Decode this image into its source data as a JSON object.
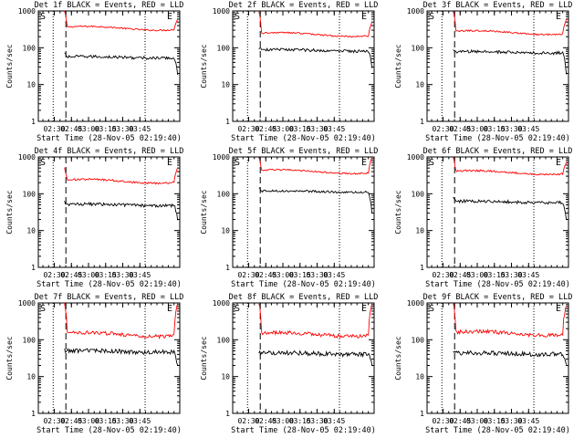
{
  "chart_data": [
    {
      "type": "line",
      "title": "Det 1f BLACK = Events, RED = LLD",
      "xlabel": "Start Time (28-Nov-05 02:19:40)",
      "ylabel": "Counts/sec",
      "yscale": "log",
      "ylim": [
        1,
        1000
      ],
      "yticks": [
        "1",
        "10",
        "100",
        "1000"
      ],
      "xticks": [
        "02:30",
        "02:45",
        "03:00",
        "03:15",
        "03:30",
        "03:45"
      ],
      "markers": {
        "start": "S",
        "end": "E"
      },
      "series": [
        {
          "color": "#ff0000",
          "level": 340,
          "edge_start": 1000,
          "edge_end": 600,
          "noise": 0.02
        },
        {
          "color": "#000000",
          "level": 55,
          "edge_start": 70,
          "edge_end": 20,
          "noise": 0.04
        }
      ]
    },
    {
      "type": "line",
      "title": "Det 2f BLACK = Events, RED = LLD",
      "xlabel": "Start Time (28-Nov-05 02:19:40)",
      "ylabel": "Counts/sec",
      "yscale": "log",
      "ylim": [
        1,
        1000
      ],
      "yticks": [
        "1",
        "10",
        "100",
        "1000"
      ],
      "xticks": [
        "02:30",
        "02:45",
        "03:00",
        "03:15",
        "03:30",
        "03:45"
      ],
      "markers": {
        "start": "S",
        "end": "E"
      },
      "series": [
        {
          "color": "#ff0000",
          "level": 230,
          "edge_start": 1000,
          "edge_end": 500,
          "noise": 0.02
        },
        {
          "color": "#000000",
          "level": 85,
          "edge_start": 100,
          "edge_end": 30,
          "noise": 0.04
        }
      ]
    },
    {
      "type": "line",
      "title": "Det 3f BLACK = Events, RED = LLD",
      "xlabel": "Start Time (28-Nov-05 02:19:40)",
      "ylabel": "Counts/sec",
      "yscale": "log",
      "ylim": [
        1,
        1000
      ],
      "yticks": [
        "1",
        "10",
        "100",
        "1000"
      ],
      "xticks": [
        "02:30",
        "02:45",
        "03:00",
        "03:15",
        "03:30",
        "03:45"
      ],
      "markers": {
        "start": "S",
        "end": "E"
      },
      "series": [
        {
          "color": "#ff0000",
          "level": 260,
          "edge_start": 1000,
          "edge_end": 600,
          "noise": 0.02
        },
        {
          "color": "#000000",
          "level": 75,
          "edge_start": 90,
          "edge_end": 20,
          "noise": 0.04
        }
      ]
    },
    {
      "type": "line",
      "title": "Det 4f BLACK = Events, RED = LLD",
      "xlabel": "Start Time (28-Nov-05 02:19:40)",
      "ylabel": "Counts/sec",
      "yscale": "log",
      "ylim": [
        1,
        1000
      ],
      "yticks": [
        "1",
        "10",
        "100",
        "1000"
      ],
      "xticks": [
        "02:30",
        "02:45",
        "03:00",
        "03:15",
        "03:30",
        "03:45"
      ],
      "markers": {
        "start": "S",
        "end": "E"
      },
      "series": [
        {
          "color": "#ff0000",
          "level": 220,
          "edge_start": 500,
          "edge_end": 500,
          "noise": 0.025
        },
        {
          "color": "#000000",
          "level": 50,
          "edge_start": 60,
          "edge_end": 20,
          "noise": 0.04
        }
      ]
    },
    {
      "type": "line",
      "title": "Det 5f BLACK = Events, RED = LLD",
      "xlabel": "Start Time (28-Nov-05 02:19:40)",
      "ylabel": "Counts/sec",
      "yscale": "log",
      "ylim": [
        1,
        1000
      ],
      "yticks": [
        "1",
        "10",
        "100",
        "1000"
      ],
      "xticks": [
        "02:30",
        "02:45",
        "03:00",
        "03:15",
        "03:30",
        "03:45"
      ],
      "markers": {
        "start": "S",
        "end": "E"
      },
      "series": [
        {
          "color": "#ff0000",
          "level": 400,
          "edge_start": 1000,
          "edge_end": 1000,
          "noise": 0.02
        },
        {
          "color": "#000000",
          "level": 115,
          "edge_start": 150,
          "edge_end": 30,
          "noise": 0.03
        }
      ]
    },
    {
      "type": "line",
      "title": "Det 6f BLACK = Events, RED = LLD",
      "xlabel": "Start Time (28-Nov-05 02:19:40)",
      "ylabel": "Counts/sec",
      "yscale": "log",
      "ylim": [
        1,
        1000
      ],
      "yticks": [
        "1",
        "10",
        "100",
        "1000"
      ],
      "xticks": [
        "02:30",
        "02:45",
        "03:00",
        "03:15",
        "03:30",
        "03:45"
      ],
      "markers": {
        "start": "S",
        "end": "E"
      },
      "series": [
        {
          "color": "#ff0000",
          "level": 380,
          "edge_start": 1000,
          "edge_end": 700,
          "noise": 0.025
        },
        {
          "color": "#000000",
          "level": 60,
          "edge_start": 80,
          "edge_end": 20,
          "noise": 0.04
        }
      ]
    },
    {
      "type": "line",
      "title": "Det 7f BLACK = Events, RED = LLD",
      "xlabel": "Start Time (28-Nov-05 02:19:40)",
      "ylabel": "Counts/sec",
      "yscale": "log",
      "ylim": [
        1,
        1000
      ],
      "yticks": [
        "1",
        "10",
        "100",
        "1000"
      ],
      "xticks": [
        "02:30",
        "02:45",
        "03:00",
        "03:15",
        "03:30",
        "03:45"
      ],
      "markers": {
        "start": "S",
        "end": "E"
      },
      "series": [
        {
          "color": "#ff0000",
          "level": 140,
          "edge_start": 1000,
          "edge_end": 900,
          "noise": 0.05
        },
        {
          "color": "#000000",
          "level": 48,
          "edge_start": 50,
          "edge_end": 20,
          "noise": 0.06
        }
      ]
    },
    {
      "type": "line",
      "title": "Det 8f BLACK = Events, RED = LLD",
      "xlabel": "Start Time (28-Nov-05 02:19:40)",
      "ylabel": "Counts/sec",
      "yscale": "log",
      "ylim": [
        1,
        1000
      ],
      "yticks": [
        "1",
        "10",
        "100",
        "1000"
      ],
      "xticks": [
        "02:30",
        "02:45",
        "03:00",
        "03:15",
        "03:30",
        "03:45"
      ],
      "markers": {
        "start": "S",
        "end": "E"
      },
      "series": [
        {
          "color": "#ff0000",
          "level": 140,
          "edge_start": 1000,
          "edge_end": 900,
          "noise": 0.05
        },
        {
          "color": "#000000",
          "level": 42,
          "edge_start": 45,
          "edge_end": 20,
          "noise": 0.06
        }
      ]
    },
    {
      "type": "line",
      "title": "Det 9f BLACK = Events, RED = LLD",
      "xlabel": "Start Time (28-Nov-05 02:19:40)",
      "ylabel": "Counts/sec",
      "yscale": "log",
      "ylim": [
        1,
        1000
      ],
      "yticks": [
        "1",
        "10",
        "100",
        "1000"
      ],
      "xticks": [
        "02:30",
        "02:45",
        "03:00",
        "03:15",
        "03:30",
        "03:45"
      ],
      "markers": {
        "start": "S",
        "end": "E"
      },
      "series": [
        {
          "color": "#ff0000",
          "level": 150,
          "edge_start": 1000,
          "edge_end": 900,
          "noise": 0.05
        },
        {
          "color": "#000000",
          "level": 42,
          "edge_start": 45,
          "edge_end": 20,
          "noise": 0.06
        }
      ]
    }
  ]
}
